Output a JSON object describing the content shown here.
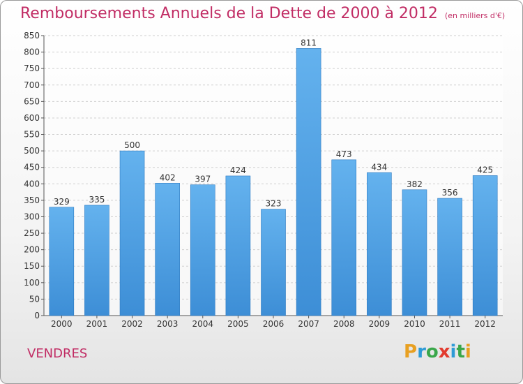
{
  "title": "Remboursements Annuels de la Dette de 2000 à 2012",
  "unit": "(en milliers d'€)",
  "city": "VENDRES",
  "brand": {
    "letters": [
      "P",
      "r",
      "o",
      "x",
      "i",
      "t",
      "i"
    ],
    "colors": [
      "#e8a021",
      "#2e9bd6",
      "#3aa74a",
      "#e23a2e",
      "#2e9bd6",
      "#3aa74a",
      "#e8a021"
    ]
  },
  "colors": {
    "bar": "#3d8ed6",
    "bar_light": "#64b2ee",
    "title": "#c12c64",
    "grid": "#cfcfcf"
  },
  "chart_data": {
    "type": "bar",
    "categories": [
      "2000",
      "2001",
      "2002",
      "2003",
      "2004",
      "2005",
      "2006",
      "2007",
      "2008",
      "2009",
      "2010",
      "2011",
      "2012"
    ],
    "values": [
      329,
      335,
      500,
      402,
      397,
      424,
      323,
      811,
      473,
      434,
      382,
      356,
      425
    ],
    "title": "Remboursements Annuels de la Dette de 2000 à 2012",
    "ylim": [
      0,
      850
    ],
    "yticks": [
      0,
      50,
      100,
      150,
      200,
      250,
      300,
      350,
      400,
      450,
      500,
      550,
      600,
      650,
      700,
      750,
      800,
      850
    ],
    "grid": true,
    "data_labels": true
  }
}
